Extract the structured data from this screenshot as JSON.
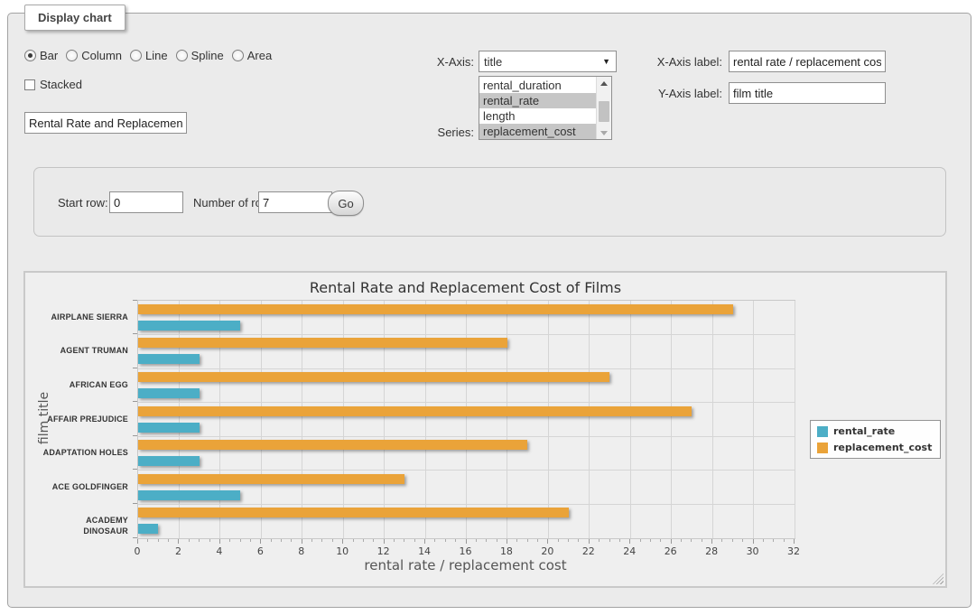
{
  "window": {
    "legend": "Display chart"
  },
  "controls": {
    "chart_types": {
      "options": [
        "Bar",
        "Column",
        "Line",
        "Spline",
        "Area"
      ],
      "selected": "Bar"
    },
    "stacked": {
      "label": "Stacked",
      "checked": false
    },
    "title_input": {
      "value": "Rental Rate and Replacement Cost of Films"
    },
    "x_axis": {
      "label": "X-Axis:",
      "value": "title",
      "arrow_icon": "▼"
    },
    "series": {
      "label": "Series:",
      "options": [
        {
          "label": "rental_duration",
          "selected": false
        },
        {
          "label": "rental_rate",
          "selected": true
        },
        {
          "label": "length",
          "selected": false
        },
        {
          "label": "replacement_cost",
          "selected": true
        }
      ]
    },
    "x_axis_label": {
      "label": "X-Axis label:",
      "value": "rental rate / replacement cost"
    },
    "y_axis_label": {
      "label": "Y-Axis label:",
      "value": "film title"
    }
  },
  "rows_panel": {
    "start_row_label": "Start row:",
    "start_row_value": "0",
    "num_rows_label": "Number of rows:",
    "num_rows_value": "7",
    "go_label": "Go"
  },
  "chart_data": {
    "type": "bar",
    "title": "Rental Rate and Replacement Cost of Films",
    "categories": [
      "AIRPLANE SIERRA",
      "AGENT TRUMAN",
      "AFRICAN EGG",
      "AFFAIR PREJUDICE",
      "ADAPTATION HOLES",
      "ACE GOLDFINGER",
      "ACADEMY DINOSAUR"
    ],
    "series": [
      {
        "name": "rental_rate",
        "color": "#4caec6",
        "values": [
          4.99,
          2.99,
          2.99,
          2.99,
          2.99,
          4.99,
          0.99
        ]
      },
      {
        "name": "replacement_cost",
        "color": "#eaa339",
        "values": [
          28.99,
          17.99,
          22.99,
          26.99,
          18.99,
          12.99,
          20.99
        ]
      }
    ],
    "xlabel": "rental rate / replacement cost",
    "ylabel": "film title",
    "xlim": [
      0,
      32
    ],
    "x_tick_step": 2,
    "x_minor_tick_step": 0.5,
    "grid": true,
    "legend_position": "right",
    "plot_background": "#efefef"
  }
}
